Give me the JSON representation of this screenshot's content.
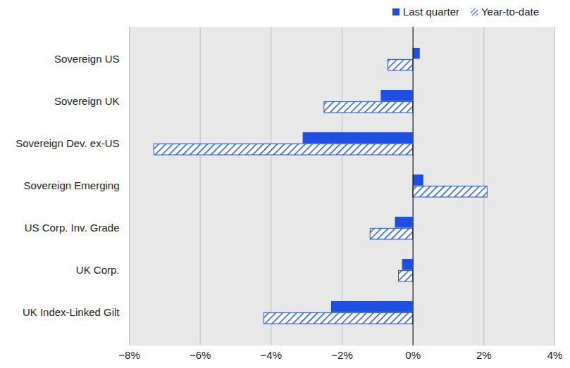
{
  "chart_data": {
    "type": "bar",
    "orientation": "horizontal",
    "categories": [
      "Sovereign US",
      "Sovereign UK",
      "Sovereign Dev. ex-US",
      "Sovereign Emerging",
      "US Corp. Inv. Grade",
      "UK Corp.",
      "UK Index-Linked Gilt"
    ],
    "series": [
      {
        "name": "Last quarter",
        "color": "#1f4fe0",
        "line_style": "solid",
        "values": [
          0.2,
          -0.9,
          -3.1,
          0.3,
          -0.5,
          -0.3,
          -2.3
        ]
      },
      {
        "name": "Year-to-date",
        "color": "#1f4fe0",
        "line_style": "hatched",
        "values": [
          -0.7,
          -2.5,
          -7.3,
          2.1,
          -1.2,
          -0.4,
          -4.2
        ]
      }
    ],
    "xlim": [
      -8,
      4
    ],
    "xticks": [
      {
        "value": -8,
        "label": "−8%"
      },
      {
        "value": -6,
        "label": "−6%"
      },
      {
        "value": -4,
        "label": "−4%"
      },
      {
        "value": -2,
        "label": "−2%"
      },
      {
        "value": 0,
        "label": "0%"
      },
      {
        "value": 2,
        "label": "2%"
      },
      {
        "value": 4,
        "label": "4%"
      }
    ],
    "grid": true,
    "legend": "top-right"
  }
}
